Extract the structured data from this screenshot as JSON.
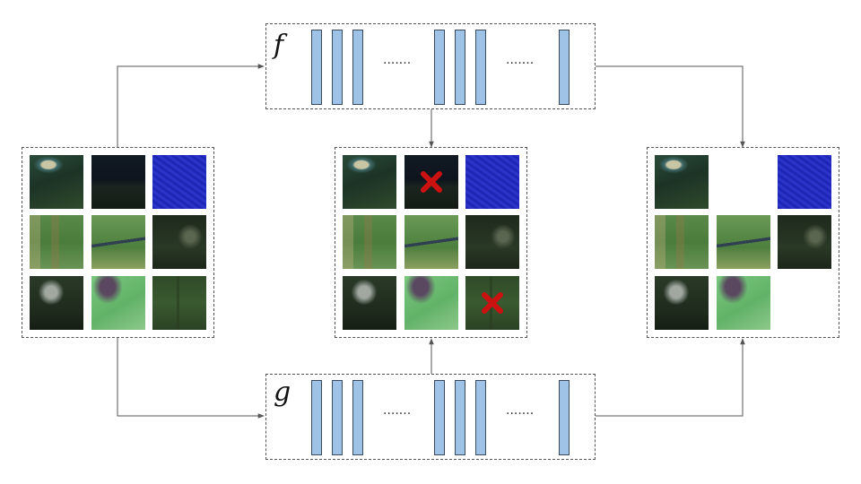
{
  "diagram": {
    "functions": {
      "f": {
        "label": "f"
      },
      "g": {
        "label": "g"
      }
    },
    "ellipsis": "·······",
    "colors": {
      "bar_fill": "#9fc3e7",
      "bar_stroke": "#3a4a5e",
      "x_mark": "#cc1111",
      "arrow": "#555555"
    },
    "tile_types": {
      "coast": "coastline-image",
      "night": "dark-sea-image",
      "water": "blue-water-image",
      "fields": "green-fields-image",
      "river": "river-fields-image",
      "darkforest": "dark-vegetation-image",
      "urban": "dark-urban-image",
      "mint": "light-green-image",
      "forest": "forest-image"
    },
    "input_grid": [
      "coast",
      "night",
      "water",
      "fields",
      "river",
      "darkforest",
      "urban",
      "mint",
      "forest"
    ],
    "middle_grid": [
      "coast",
      "night",
      "water",
      "fields",
      "river",
      "darkforest",
      "urban",
      "mint",
      "forest"
    ],
    "middle_removed": [
      1,
      8
    ],
    "output_grid": [
      "coast",
      "",
      "water",
      "fields",
      "river",
      "darkforest",
      "urban",
      "mint",
      ""
    ]
  }
}
